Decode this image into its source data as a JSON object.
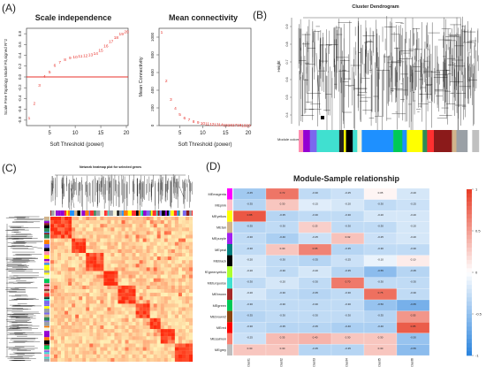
{
  "panels": {
    "a": {
      "label": "(A)",
      "scale": {
        "title": "Scale independence",
        "xlabel": "Soft Threshold (power)",
        "ylabel": "Scale Free Topology Model Fit,signed R^2",
        "xticks": [
          5,
          10,
          15,
          20
        ],
        "yticks": [
          "-0.8",
          "-0.6",
          "-0.4",
          "-0.2",
          "0.0",
          "0.2",
          "0.4",
          "0.6",
          "0.8"
        ],
        "cutoff": 0.0,
        "line_color": "#e8302a",
        "point_color": "#e8302a"
      },
      "mean": {
        "title": "Mean connectivity",
        "xlabel": "Soft Threshold (power)",
        "ylabel": "Mean Connectivity",
        "xticks": [
          5,
          10,
          15,
          20
        ],
        "yticks": [
          "0",
          "200",
          "400",
          "600",
          "800",
          "1000"
        ],
        "point_color": "#e8302a"
      }
    },
    "b": {
      "label": "(B)",
      "title": "Cluster Dendrogram",
      "ylabel": "Height",
      "yticks": [
        "0.4",
        "0.5",
        "0.6",
        "0.7",
        "0.8",
        "0.9"
      ],
      "colors_label": "Module colors",
      "module_bar": [
        {
          "color": "#ff8fb0",
          "w": 2
        },
        {
          "color": "#9400d3",
          "w": 3
        },
        {
          "color": "#7b68ee",
          "w": 3
        },
        {
          "color": "#40e0d0",
          "w": 10
        },
        {
          "color": "#222222",
          "w": 2
        },
        {
          "color": "#ffff00",
          "w": 1
        },
        {
          "color": "#000000",
          "w": 3
        },
        {
          "color": "#40e0d0",
          "w": 2
        },
        {
          "color": "#f5f5dc",
          "w": 2
        },
        {
          "color": "#1e90ff",
          "w": 14
        },
        {
          "color": "#00c957",
          "w": 4
        },
        {
          "color": "#1e90ff",
          "w": 2
        },
        {
          "color": "#ffff00",
          "w": 7
        },
        {
          "color": "#2e8b57",
          "w": 2
        },
        {
          "color": "#ff3030",
          "w": 3
        },
        {
          "color": "#8b1a1a",
          "w": 8
        },
        {
          "color": "#d2b48c",
          "w": 2
        },
        {
          "color": "#9aa0a6",
          "w": 5
        },
        {
          "color": "#ffffff",
          "w": 2
        },
        {
          "color": "#c0c0c0",
          "w": 3
        }
      ]
    },
    "c": {
      "label": "(C)",
      "title": "Network heatmap plot for selected genes"
    },
    "d": {
      "label": "(D)",
      "title": "Module-Sample relationship",
      "scale_ticks": [
        "1",
        "0.5",
        "0",
        "-0.5",
        "-1"
      ],
      "columns": [
        "Tclust1",
        "Tclust2",
        "Tclust3",
        "Tclust4",
        "Tclust5",
        "Tclust6"
      ]
    }
  },
  "chart_data": [
    {
      "type": "scatter",
      "title": "Scale independence",
      "xlabel": "Soft Threshold (power)",
      "ylabel": "Scale Free Topology Model Fit,signed R^2",
      "xlim": [
        1,
        20
      ],
      "ylim": [
        -0.9,
        0.9
      ],
      "x": [
        1,
        2,
        3,
        4,
        5,
        6,
        7,
        8,
        9,
        10,
        11,
        12,
        13,
        14,
        15,
        16,
        17,
        18,
        19,
        20
      ],
      "y": [
        -0.75,
        -0.48,
        -0.15,
        0.02,
        0.1,
        0.22,
        0.28,
        0.33,
        0.36,
        0.38,
        0.39,
        0.4,
        0.42,
        0.44,
        0.5,
        0.58,
        0.66,
        0.74,
        0.8,
        0.84
      ]
    },
    {
      "type": "scatter",
      "title": "Mean connectivity",
      "xlabel": "Soft Threshold (power)",
      "ylabel": "Mean Connectivity",
      "xlim": [
        1,
        20
      ],
      "ylim": [
        0,
        1100
      ],
      "x": [
        1,
        2,
        3,
        4,
        5,
        6,
        7,
        8,
        9,
        10,
        11,
        12,
        13,
        14,
        15,
        16,
        17,
        18,
        19,
        20
      ],
      "y": [
        1060,
        510,
        300,
        200,
        130,
        90,
        70,
        52,
        40,
        30,
        25,
        20,
        16,
        14,
        12,
        10,
        9,
        8,
        7,
        6
      ]
    },
    {
      "type": "heatmap",
      "title": "Module-Sample relationship",
      "rows": [
        "MEmagenta",
        "MEpink",
        "MEyellow",
        "MEtan",
        "MEpurple",
        "MEpeal",
        "MEblack",
        "MEgreenyellow",
        "MEturquoise",
        "MEbrown",
        "MEgreen",
        "MEbrown2",
        "MEred",
        "MEsalmon",
        "MEgrey"
      ],
      "columns": [
        "Tclust1",
        "Tclust2",
        "Tclust3",
        "Tclust4",
        "Tclust5",
        "Tclust6"
      ],
      "color_scale": [
        "#2e86de",
        "#ffffff",
        "#e8402a"
      ],
      "values": [
        [
          -0.45,
          0.72,
          -0.3,
          -0.25,
          0.05,
          -0.2
        ],
        [
          -0.35,
          0.3,
          -0.15,
          -0.2,
          -0.3,
          -0.25
        ],
        [
          0.88,
          -0.35,
          -0.3,
          -0.3,
          -0.2,
          -0.2
        ],
        [
          -0.35,
          -0.3,
          0.25,
          -0.3,
          -0.3,
          -0.2
        ],
        [
          -0.3,
          -0.4,
          -0.25,
          0.32,
          -0.25,
          -0.2
        ],
        [
          -0.3,
          0.3,
          0.65,
          -0.35,
          -0.3,
          -0.3
        ],
        [
          -0.2,
          -0.3,
          -0.35,
          -0.25,
          -0.1,
          0.1
        ],
        [
          -0.2,
          -0.3,
          -0.2,
          -0.35,
          -0.55,
          -0.35
        ],
        [
          -0.3,
          -0.2,
          -0.3,
          0.7,
          -0.3,
          -0.3
        ],
        [
          -0.2,
          -0.3,
          -0.35,
          -0.3,
          0.75,
          -0.3
        ],
        [
          -0.3,
          -0.3,
          -0.3,
          -0.3,
          -0.5,
          -0.65
        ],
        [
          -0.35,
          -0.3,
          -0.3,
          -0.3,
          -0.35,
          0.55
        ],
        [
          -0.3,
          -0.35,
          -0.35,
          -0.4,
          -0.4,
          0.85
        ],
        [
          -0.25,
          0.35,
          0.4,
          0.3,
          0.3,
          -0.5
        ],
        [
          0.3,
          0.3,
          -0.35,
          -0.35,
          0.3,
          -0.55
        ]
      ]
    }
  ]
}
